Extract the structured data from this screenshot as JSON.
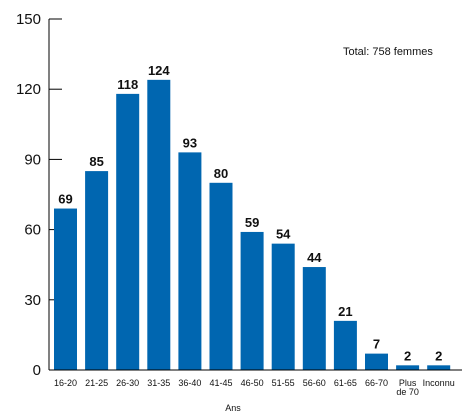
{
  "chart_data": {
    "type": "bar",
    "categories": [
      "16-20",
      "21-25",
      "26-30",
      "31-35",
      "36-40",
      "41-45",
      "46-50",
      "51-55",
      "56-60",
      "61-65",
      "66-70",
      "Plus de 70",
      "Inconnu"
    ],
    "category_lines": [
      [
        "16-20"
      ],
      [
        "21-25"
      ],
      [
        "26-30"
      ],
      [
        "31-35"
      ],
      [
        "36-40"
      ],
      [
        "41-45"
      ],
      [
        "46-50"
      ],
      [
        "51-55"
      ],
      [
        "56-60"
      ],
      [
        "61-65"
      ],
      [
        "66-70"
      ],
      [
        "Plus",
        "de 70"
      ],
      [
        "Inconnu"
      ]
    ],
    "values": [
      69,
      85,
      118,
      124,
      93,
      80,
      59,
      54,
      44,
      21,
      7,
      2,
      2
    ],
    "yticks": [
      0,
      30,
      60,
      90,
      120,
      150
    ],
    "ylim": [
      0,
      150
    ],
    "xlabel": "Ans",
    "ylabel": "",
    "title": "",
    "annotation": "Total:  758 femmes",
    "bar_color": "#0066b0",
    "grid": false
  }
}
